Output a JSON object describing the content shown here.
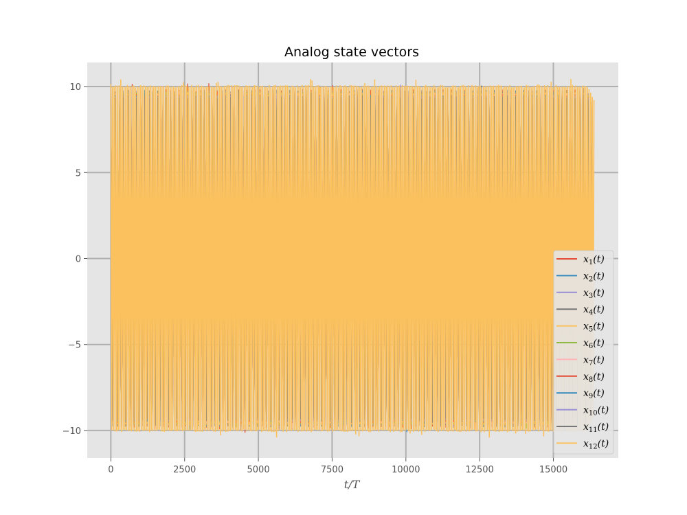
{
  "chart_data": {
    "type": "line",
    "title": "Analog state vectors",
    "xlabel": "t/T",
    "ylabel": "",
    "xlim": [
      -800,
      17200
    ],
    "ylim": [
      -11.6,
      11.4
    ],
    "x_range": [
      0,
      16384
    ],
    "xticks": [
      0,
      2500,
      5000,
      7500,
      10000,
      12500,
      15000
    ],
    "xtick_labels": [
      "0",
      "2500",
      "5000",
      "7500",
      "10000",
      "12500",
      "15000"
    ],
    "yticks": [
      -10,
      -5,
      0,
      5,
      10
    ],
    "ytick_labels": [
      "−10",
      "−5",
      "0",
      "5",
      "10"
    ],
    "grid": true,
    "legend_position": "lower-right",
    "amplitude_band": [
      -10,
      10
    ],
    "series": [
      {
        "name_base": "x",
        "name_sub": "1",
        "name_suffix": "(t)",
        "color": "#E24A33"
      },
      {
        "name_base": "x",
        "name_sub": "2",
        "name_suffix": "(t)",
        "color": "#348ABD"
      },
      {
        "name_base": "x",
        "name_sub": "3",
        "name_suffix": "(t)",
        "color": "#988ED5"
      },
      {
        "name_base": "x",
        "name_sub": "4",
        "name_suffix": "(t)",
        "color": "#777777"
      },
      {
        "name_base": "x",
        "name_sub": "5",
        "name_suffix": "(t)",
        "color": "#FBC15E"
      },
      {
        "name_base": "x",
        "name_sub": "6",
        "name_suffix": "(t)",
        "color": "#8EBA42"
      },
      {
        "name_base": "x",
        "name_sub": "7",
        "name_suffix": "(t)",
        "color": "#FFB5B8"
      },
      {
        "name_base": "x",
        "name_sub": "8",
        "name_suffix": "(t)",
        "color": "#E24A33"
      },
      {
        "name_base": "x",
        "name_sub": "9",
        "name_suffix": "(t)",
        "color": "#348ABD"
      },
      {
        "name_base": "x",
        "name_sub": "10",
        "name_suffix": "(t)",
        "color": "#988ED5"
      },
      {
        "name_base": "x",
        "name_sub": "11",
        "name_suffix": "(t)",
        "color": "#777777"
      },
      {
        "name_base": "x",
        "name_sub": "12",
        "name_suffix": "(t)",
        "color": "#FBC15E"
      }
    ]
  }
}
